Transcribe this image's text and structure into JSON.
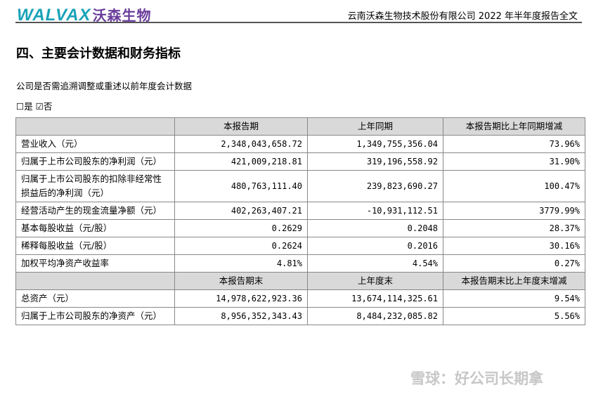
{
  "header": {
    "logo_text": "WALVAX",
    "logo_cn": "沃森生物",
    "doc_title": "云南沃森生物技术股份有限公司 2022 年半年度报告全文"
  },
  "section_title": "四、主要会计数据和财务指标",
  "question": "公司是否需追溯调整或重述以前年度会计数据",
  "options": "☐是 ☑否",
  "table": {
    "header1": [
      "",
      "本报告期",
      "上年同期",
      "本报告期比上年同期增减"
    ],
    "rows1": [
      [
        "营业收入（元）",
        "2,348,043,658.72",
        "1,349,755,356.04",
        "73.96%"
      ],
      [
        "归属于上市公司股东的净利润（元）",
        "421,009,218.81",
        "319,196,558.92",
        "31.90%"
      ],
      [
        "归属于上市公司股东的扣除非经常性损益后的净利润（元）",
        "480,763,111.40",
        "239,823,690.27",
        "100.47%"
      ],
      [
        "经营活动产生的现金流量净额（元）",
        "402,263,407.21",
        "-10,931,112.51",
        "3779.99%"
      ],
      [
        "基本每股收益（元/股）",
        "0.2629",
        "0.2048",
        "28.37%"
      ],
      [
        "稀释每股收益（元/股）",
        "0.2624",
        "0.2016",
        "30.16%"
      ],
      [
        "加权平均净资产收益率",
        "4.81%",
        "4.54%",
        "0.27%"
      ]
    ],
    "header2": [
      "",
      "本报告期末",
      "上年度末",
      "本报告期末比上年度末增减"
    ],
    "rows2": [
      [
        "总资产（元）",
        "14,978,622,923.36",
        "13,674,114,325.61",
        "9.54%"
      ],
      [
        "归属于上市公司股东的净资产（元）",
        "8,956,352,343.43",
        "8,484,232,085.82",
        "5.56%"
      ]
    ]
  },
  "watermark": "雪球：好公司长期拿"
}
